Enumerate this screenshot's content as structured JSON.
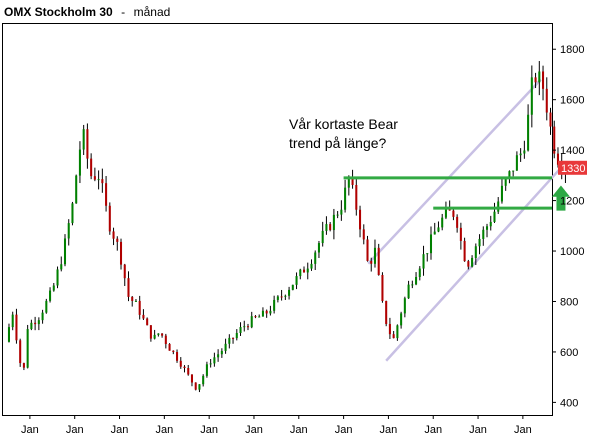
{
  "header": {
    "title_bold": "OMX Stockholm 30",
    "title_separator": "-",
    "title_period": "månad"
  },
  "annotation": {
    "line1": "Vår kortaste Bear",
    "line2": "trend på länge?"
  },
  "colors": {
    "up_candle": "#008000",
    "down_candle": "#b00000",
    "wick": "#000000",
    "support_line": "#33aa44",
    "channel_line": "#c8c0e4",
    "badge": "#e8383a",
    "arrow": "#2ca844",
    "frame": "#000000"
  },
  "icons": {
    "arrow": "up-arrow-icon"
  },
  "chart_data": {
    "type": "candlestick",
    "title": "OMX Stockholm 30 - månad",
    "xlabel": "",
    "ylabel": "",
    "ylim": [
      350,
      1900
    ],
    "x_range": [
      1998.4,
      2010.65
    ],
    "grid": false,
    "y_axis_position": "right",
    "y_ticks": [
      400,
      600,
      800,
      1000,
      1200,
      1400,
      1600,
      1800
    ],
    "y_tick_labels": [
      "400",
      "600",
      "800",
      "1000",
      "1200",
      "1400",
      "1600",
      "1800"
    ],
    "x_ticks": [
      1999,
      2000,
      2001,
      2002,
      2003,
      2004,
      2005,
      2006,
      2007,
      2008,
      2009,
      2010
    ],
    "x_tick_labels": [
      "Jan",
      "Jan",
      "Jan",
      "Jan",
      "Jan",
      "Jan",
      "Jan",
      "Jan",
      "Jan",
      "Jan",
      "Jan",
      "Jan"
    ],
    "last_price": 1330,
    "last_price_label": "1330",
    "anchors": [
      [
        1998.45,
        640
      ],
      [
        1998.62,
        760
      ],
      [
        1998.78,
        560
      ],
      [
        1998.86,
        520
      ],
      [
        1998.95,
        700
      ],
      [
        1999.2,
        740
      ],
      [
        1999.5,
        840
      ],
      [
        1999.75,
        1000
      ],
      [
        1999.95,
        1180
      ],
      [
        2000.1,
        1400
      ],
      [
        2000.2,
        1450
      ],
      [
        2000.35,
        1300
      ],
      [
        2000.55,
        1300
      ],
      [
        2000.75,
        1120
      ],
      [
        2001.0,
        1000
      ],
      [
        2001.2,
        820
      ],
      [
        2001.4,
        780
      ],
      [
        2001.6,
        700
      ],
      [
        2001.75,
        650
      ],
      [
        2001.9,
        680
      ],
      [
        2002.1,
        620
      ],
      [
        2002.35,
        560
      ],
      [
        2002.55,
        500
      ],
      [
        2002.7,
        460
      ],
      [
        2002.8,
        480
      ],
      [
        2003.0,
        560
      ],
      [
        2003.25,
        600
      ],
      [
        2003.5,
        650
      ],
      [
        2003.75,
        700
      ],
      [
        2004.0,
        730
      ],
      [
        2004.25,
        750
      ],
      [
        2004.5,
        800
      ],
      [
        2004.75,
        850
      ],
      [
        2005.0,
        900
      ],
      [
        2005.25,
        960
      ],
      [
        2005.5,
        1050
      ],
      [
        2005.75,
        1120
      ],
      [
        2006.0,
        1200
      ],
      [
        2006.1,
        1300
      ],
      [
        2006.25,
        1200
      ],
      [
        2006.4,
        1080
      ],
      [
        2006.55,
        940
      ],
      [
        2006.7,
        1000
      ],
      [
        2006.85,
        800
      ],
      [
        2006.95,
        720
      ],
      [
        2007.1,
        640
      ],
      [
        2007.25,
        740
      ],
      [
        2007.45,
        860
      ],
      [
        2007.7,
        950
      ],
      [
        2007.9,
        1020
      ],
      [
        2008.1,
        1100
      ],
      [
        2008.3,
        1150
      ],
      [
        2008.5,
        1150
      ],
      [
        2008.6,
        1050
      ],
      [
        2008.7,
        980
      ],
      [
        2008.8,
        950
      ],
      [
        2008.88,
        1000
      ],
      [
        2009.0,
        1040
      ],
      [
        2009.2,
        1100
      ],
      [
        2009.4,
        1170
      ],
      [
        2009.55,
        1250
      ],
      [
        2009.7,
        1300
      ],
      [
        2009.85,
        1360
      ],
      [
        2010.0,
        1400
      ],
      [
        2010.1,
        1500
      ],
      [
        2010.2,
        1650
      ],
      [
        2010.3,
        1700
      ],
      [
        2010.45,
        1650
      ],
      [
        2010.55,
        1560
      ],
      [
        2010.65,
        1450
      ],
      [
        2010.75,
        1380
      ],
      [
        2010.85,
        1350
      ],
      [
        2010.95,
        1330
      ]
    ],
    "annotations": {
      "support_lines": [
        {
          "name": "resistance-turned-support",
          "x1": 2006.0,
          "y1": 1290,
          "x2": 2011.2,
          "y2": 1290
        },
        {
          "name": "breakout-support",
          "x1": 2008.0,
          "y1": 1170,
          "x2": 2011.2,
          "y2": 1170
        }
      ],
      "channel_lines": [
        {
          "name": "channel-upper",
          "x1": 2006.55,
          "y1": 950,
          "x2": 2010.4,
          "y2": 1680
        },
        {
          "name": "channel-lower",
          "x1": 2006.95,
          "y1": 565,
          "x2": 2010.85,
          "y2": 1330
        }
      ],
      "arrow": {
        "x": 2010.85,
        "y_tip": 1260,
        "y_base": 1160
      }
    }
  }
}
